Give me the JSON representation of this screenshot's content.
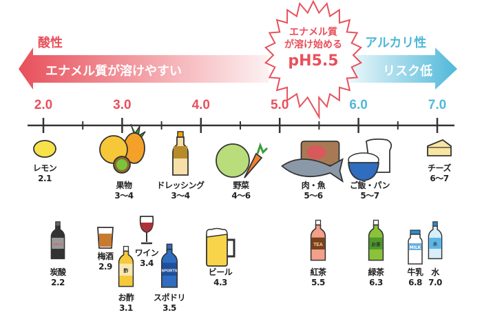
{
  "acid": {
    "title": "酸性",
    "band_text": "エナメル質が溶けやすい",
    "color": "#e8505b"
  },
  "alkaline": {
    "title": "アルカリ性",
    "band_text": "リスク低",
    "color": "#4fb8d9"
  },
  "burst": {
    "line1": "エナメル質",
    "line2": "が溶け始める",
    "line3": "pH5.5",
    "threshold": 5.5
  },
  "axis": {
    "min": 2.0,
    "max": 7.0,
    "ticks": [
      "2.0",
      "3.0",
      "4.0",
      "5.0",
      "6.0",
      "7.0"
    ]
  },
  "foods": [
    {
      "name": "レモン",
      "value": "2.1",
      "icon": "lemon-icon"
    },
    {
      "name": "果物",
      "value": "3〜4",
      "icon": "fruits-icon"
    },
    {
      "name": "ドレッシング",
      "value": "3〜4",
      "icon": "dressing-bottle-icon"
    },
    {
      "name": "野菜",
      "value": "4〜6",
      "icon": "vegetables-icon"
    },
    {
      "name": "肉・魚",
      "value": "5〜6",
      "icon": "meat-fish-icon"
    },
    {
      "name": "ご飯・パン",
      "value": "5〜7",
      "icon": "rice-bread-icon"
    },
    {
      "name": "チーズ",
      "value": "6〜7",
      "icon": "cheese-icon"
    }
  ],
  "drinks": [
    {
      "name": "炭酸",
      "value": "2.2",
      "icon": "cola-bottle-icon",
      "label": "COLA"
    },
    {
      "name": "梅酒",
      "value": "2.9",
      "icon": "umeshu-glass-icon"
    },
    {
      "name": "お酢",
      "value": "3.1",
      "icon": "vinegar-bottle-icon",
      "label": "酢"
    },
    {
      "name": "ワイン",
      "value": "3.4",
      "icon": "wine-glass-icon"
    },
    {
      "name": "スポドリ",
      "value": "3.5",
      "icon": "sports-drink-icon",
      "label": "SPORTS"
    },
    {
      "name": "ビール",
      "value": "4.3",
      "icon": "beer-mug-icon"
    },
    {
      "name": "紅茶",
      "value": "5.5",
      "icon": "black-tea-bottle-icon",
      "label": "TEA"
    },
    {
      "name": "緑茶",
      "value": "6.3",
      "icon": "green-tea-bottle-icon",
      "label": "お茶"
    },
    {
      "name": "牛乳",
      "value": "6.8",
      "icon": "milk-bottle-icon",
      "label": "MILK"
    },
    {
      "name": "水",
      "value": "7.0",
      "icon": "water-bottle-icon",
      "label": "水"
    }
  ]
}
